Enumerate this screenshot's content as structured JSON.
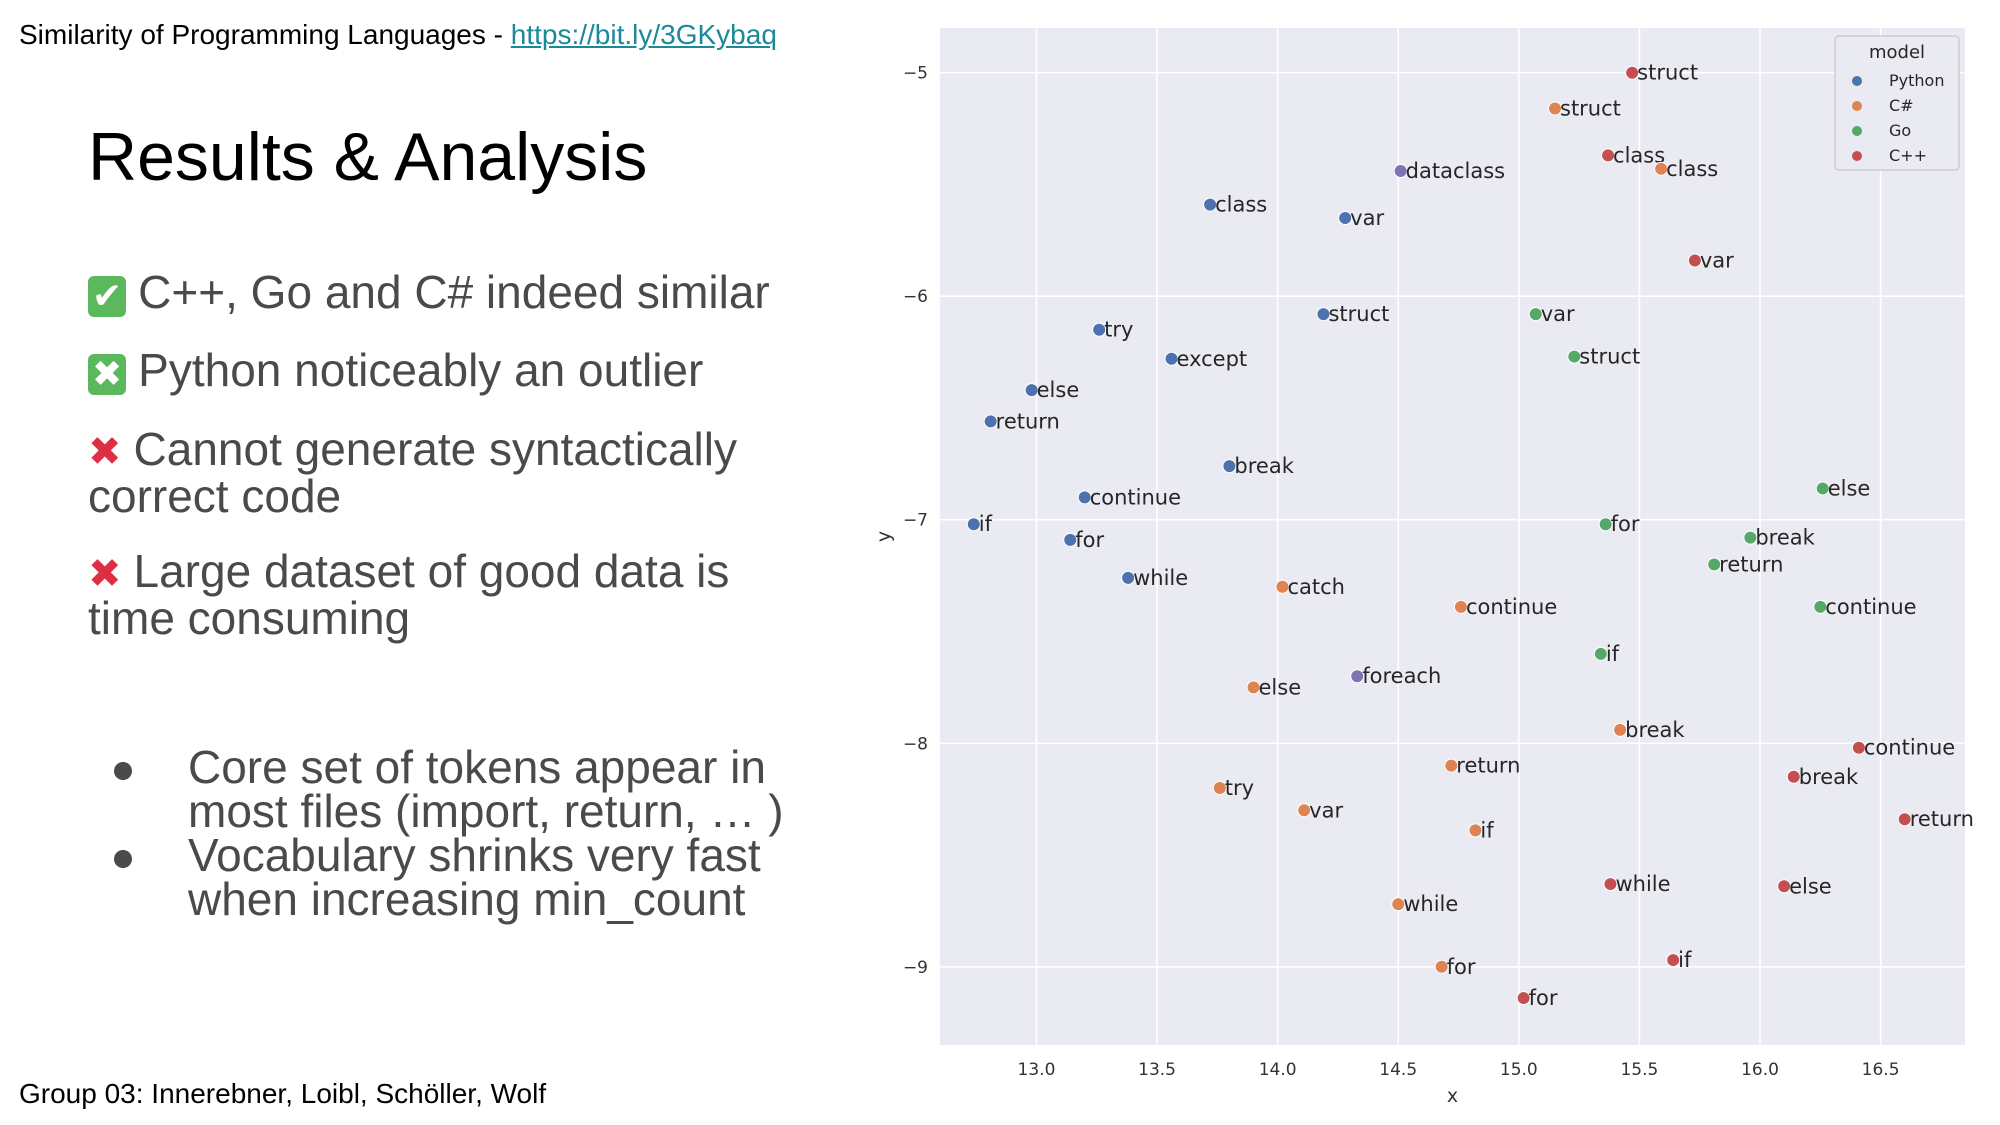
{
  "header": {
    "prefix": "Similarity of Programming Languages - ",
    "link_text": "https://bit.ly/3GKybaq"
  },
  "title": "Results & Analysis",
  "points": [
    {
      "icon": "check-mark",
      "symbol": "✔",
      "text": "C++, Go and C# indeed similar"
    },
    {
      "icon": "cross-mark",
      "symbol": "✖",
      "text": "Python noticeably an outlier"
    },
    {
      "icon": "cross-mark",
      "symbol": "✖",
      "text": "Cannot generate syntactically correct code"
    },
    {
      "icon": "cross-mark",
      "symbol": "✖",
      "text": "Large dataset of good data is time consuming"
    }
  ],
  "bullets": [
    "Core set of tokens appear in most files (import, return, … )",
    "Vocabulary shrinks very fast when increasing min_count"
  ],
  "footer": "Group 03: Innerebner, Loibl, Schöller, Wolf",
  "colors": {
    "Python": "#4c72b0",
    "C#": "#dd8452",
    "Go": "#55a868",
    "C++": "#c44e52",
    "other": "#8172b3",
    "plot_bg": "#eaeaf2",
    "grid": "#ffffff"
  },
  "chart_data": {
    "type": "scatter",
    "xlabel": "x",
    "ylabel": "y",
    "xlim": [
      12.6,
      16.85
    ],
    "ylim": [
      -9.35,
      -4.8
    ],
    "xticks": [
      13.0,
      13.5,
      14.0,
      14.5,
      15.0,
      15.5,
      16.0,
      16.5
    ],
    "yticks": [
      -5,
      -6,
      -7,
      -8,
      -9
    ],
    "grid": true,
    "legend": {
      "title": "model",
      "placement": "top-right",
      "entries": [
        "Python",
        "C#",
        "Go",
        "C++"
      ]
    },
    "points": [
      {
        "label": "struct",
        "x": 15.47,
        "y": -5.0,
        "group": "C++"
      },
      {
        "label": "struct",
        "x": 15.15,
        "y": -5.16,
        "group": "C#"
      },
      {
        "label": "class",
        "x": 15.37,
        "y": -5.37,
        "group": "C++"
      },
      {
        "label": "class",
        "x": 15.59,
        "y": -5.43,
        "group": "C#"
      },
      {
        "label": "dataclass",
        "x": 14.51,
        "y": -5.44,
        "group": "other"
      },
      {
        "label": "class",
        "x": 13.72,
        "y": -5.59,
        "group": "Python"
      },
      {
        "label": "var",
        "x": 14.28,
        "y": -5.65,
        "group": "Python"
      },
      {
        "label": "var",
        "x": 15.73,
        "y": -5.84,
        "group": "C++"
      },
      {
        "label": "struct",
        "x": 14.19,
        "y": -6.08,
        "group": "Python"
      },
      {
        "label": "var",
        "x": 15.07,
        "y": -6.08,
        "group": "Go"
      },
      {
        "label": "try",
        "x": 13.26,
        "y": -6.15,
        "group": "Python"
      },
      {
        "label": "except",
        "x": 13.56,
        "y": -6.28,
        "group": "Python"
      },
      {
        "label": "struct",
        "x": 15.23,
        "y": -6.27,
        "group": "Go"
      },
      {
        "label": "else",
        "x": 12.98,
        "y": -6.42,
        "group": "Python"
      },
      {
        "label": "return",
        "x": 12.81,
        "y": -6.56,
        "group": "Python"
      },
      {
        "label": "break",
        "x": 13.8,
        "y": -6.76,
        "group": "Python"
      },
      {
        "label": "else",
        "x": 16.26,
        "y": -6.86,
        "group": "Go"
      },
      {
        "label": "continue",
        "x": 13.2,
        "y": -6.9,
        "group": "Python"
      },
      {
        "label": "if",
        "x": 12.74,
        "y": -7.02,
        "group": "Python"
      },
      {
        "label": "for",
        "x": 15.36,
        "y": -7.02,
        "group": "Go"
      },
      {
        "label": "for",
        "x": 13.14,
        "y": -7.09,
        "group": "Python"
      },
      {
        "label": "break",
        "x": 15.96,
        "y": -7.08,
        "group": "Go"
      },
      {
        "label": "return",
        "x": 15.81,
        "y": -7.2,
        "group": "Go"
      },
      {
        "label": "while",
        "x": 13.38,
        "y": -7.26,
        "group": "Python"
      },
      {
        "label": "catch",
        "x": 14.02,
        "y": -7.3,
        "group": "C#"
      },
      {
        "label": "continue",
        "x": 14.76,
        "y": -7.39,
        "group": "C#"
      },
      {
        "label": "continue",
        "x": 16.25,
        "y": -7.39,
        "group": "Go"
      },
      {
        "label": "if",
        "x": 15.34,
        "y": -7.6,
        "group": "Go"
      },
      {
        "label": "foreach",
        "x": 14.33,
        "y": -7.7,
        "group": "other"
      },
      {
        "label": "else",
        "x": 13.9,
        "y": -7.75,
        "group": "C#"
      },
      {
        "label": "break",
        "x": 15.42,
        "y": -7.94,
        "group": "C#"
      },
      {
        "label": "continue",
        "x": 16.41,
        "y": -8.02,
        "group": "C++"
      },
      {
        "label": "return",
        "x": 14.72,
        "y": -8.1,
        "group": "C#"
      },
      {
        "label": "break",
        "x": 16.14,
        "y": -8.15,
        "group": "C++"
      },
      {
        "label": "try",
        "x": 13.76,
        "y": -8.2,
        "group": "C#"
      },
      {
        "label": "var",
        "x": 14.11,
        "y": -8.3,
        "group": "C#"
      },
      {
        "label": "return",
        "x": 16.6,
        "y": -8.34,
        "group": "C++"
      },
      {
        "label": "if",
        "x": 14.82,
        "y": -8.39,
        "group": "C#"
      },
      {
        "label": "while",
        "x": 15.38,
        "y": -8.63,
        "group": "C++"
      },
      {
        "label": "else",
        "x": 16.1,
        "y": -8.64,
        "group": "C++"
      },
      {
        "label": "while",
        "x": 14.5,
        "y": -8.72,
        "group": "C#"
      },
      {
        "label": "if",
        "x": 15.64,
        "y": -8.97,
        "group": "C++"
      },
      {
        "label": "for",
        "x": 14.68,
        "y": -9.0,
        "group": "C#"
      },
      {
        "label": "for",
        "x": 15.02,
        "y": -9.14,
        "group": "C++"
      }
    ]
  }
}
